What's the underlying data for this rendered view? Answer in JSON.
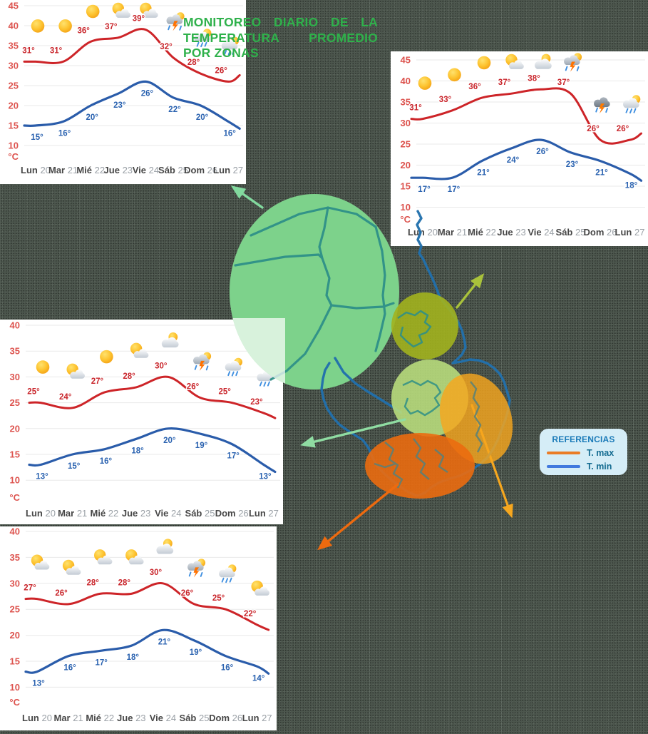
{
  "title": {
    "lines": [
      "MONITOREO DIARIO DE LA",
      "TEMPERATURA PROMEDIO",
      "POR ZONAS"
    ],
    "color": "#2fb14b"
  },
  "legend": {
    "title": "REFERENCIAS",
    "items": [
      {
        "label": "T. max",
        "color": "#ea7c26"
      },
      {
        "label": "T. min",
        "color": "#4179de"
      }
    ]
  },
  "chart_data": [
    {
      "type": "line",
      "zone": "zone-1",
      "categories": [
        "Lun 20",
        "Mar 21",
        "Mié 22",
        "Jue 23",
        "Vie 24",
        "Sáb 25",
        "Dom 26",
        "Lun 27"
      ],
      "ylabel": "°C",
      "ylim": [
        10,
        45
      ],
      "yticks": [
        45,
        40,
        35,
        30,
        25,
        20,
        15,
        10
      ],
      "grid": true,
      "legend_position": "none",
      "series": [
        {
          "name": "T. max",
          "color": "#cd2428",
          "values": [
            31,
            31,
            36,
            37,
            39,
            32,
            28,
            26
          ],
          "labels": [
            "31°",
            "31°",
            "36°",
            "37°",
            "39°",
            "32°",
            "28°",
            "26°"
          ],
          "icons": [
            "sun",
            "sun",
            "sun",
            "sun-cloud",
            "sun-cloud",
            "storm",
            "rain-sun",
            "rain-sun"
          ]
        },
        {
          "name": "T. min",
          "color": "#2a5caa",
          "values": [
            15,
            16,
            20,
            23,
            26,
            22,
            20,
            16
          ],
          "labels": [
            "15°",
            "16°",
            "20°",
            "23°",
            "26°",
            "22°",
            "20°",
            "16°"
          ]
        }
      ]
    },
    {
      "type": "line",
      "zone": "zone-2",
      "categories": [
        "Lun 20",
        "Mar 21",
        "Mié 22",
        "Jue 23",
        "Vie 24",
        "Sáb 25",
        "Dom 26",
        "Lun 27"
      ],
      "ylabel": "°C",
      "ylim": [
        10,
        45
      ],
      "yticks": [
        45,
        40,
        35,
        30,
        25,
        20,
        15,
        10
      ],
      "grid": true,
      "legend_position": "none",
      "series": [
        {
          "name": "T. max",
          "color": "#cd2428",
          "values": [
            31,
            33,
            36,
            37,
            38,
            37,
            26,
            26
          ],
          "labels": [
            "31°",
            "33°",
            "36°",
            "37°",
            "38°",
            "37°",
            "26°",
            "26°"
          ],
          "icons": [
            "sun",
            "sun",
            "sun",
            "sun-cloud",
            "cloud-sun",
            "storm",
            "storm-dark",
            "rain-sun"
          ]
        },
        {
          "name": "T. min",
          "color": "#2a5caa",
          "values": [
            17,
            17,
            21,
            24,
            26,
            23,
            21,
            18
          ],
          "labels": [
            "17°",
            "17°",
            "21°",
            "24°",
            "26°",
            "23°",
            "21°",
            "18°"
          ]
        }
      ]
    },
    {
      "type": "line",
      "zone": "zone-3",
      "categories": [
        "Lun 20",
        "Mar 21",
        "Mié 22",
        "Jue 23",
        "Vie 24",
        "Sáb 25",
        "Dom 26",
        "Lun 27"
      ],
      "ylabel": "°C",
      "ylim": [
        10,
        40
      ],
      "yticks": [
        40,
        35,
        30,
        25,
        20,
        15,
        10
      ],
      "grid": true,
      "legend_position": "none",
      "series": [
        {
          "name": "T. max",
          "color": "#cd2428",
          "values": [
            25,
            24,
            27,
            28,
            30,
            26,
            25,
            23
          ],
          "labels": [
            "25°",
            "24°",
            "27°",
            "28°",
            "30°",
            "26°",
            "25°",
            "23°"
          ],
          "icons": [
            "sun",
            "sun-cloud",
            "sun",
            "sun-cloud",
            "cloud-sun",
            "storm",
            "rain-sun",
            "rain-sun"
          ]
        },
        {
          "name": "T. min",
          "color": "#2a5caa",
          "values": [
            13,
            15,
            16,
            18,
            20,
            19,
            17,
            13
          ],
          "labels": [
            "13°",
            "15°",
            "16°",
            "18°",
            "20°",
            "19°",
            "17°",
            "13°"
          ]
        }
      ]
    },
    {
      "type": "line",
      "zone": "zone-4",
      "categories": [
        "Lun 20",
        "Mar 21",
        "Mié 22",
        "Jue 23",
        "Vie 24",
        "Sáb 25",
        "Dom 26",
        "Lun 27"
      ],
      "ylabel": "°C",
      "ylim": [
        10,
        40
      ],
      "yticks": [
        40,
        35,
        30,
        25,
        20,
        15,
        10
      ],
      "grid": true,
      "legend_position": "none",
      "series": [
        {
          "name": "T. max",
          "color": "#cd2428",
          "values": [
            27,
            26,
            28,
            28,
            30,
            26,
            25,
            22
          ],
          "labels": [
            "27°",
            "26°",
            "28°",
            "28°",
            "30°",
            "26°",
            "25°",
            "22°"
          ],
          "icons": [
            "sun-cloud",
            "sun-cloud",
            "sun-cloud",
            "sun-cloud",
            "cloud-sun",
            "storm",
            "rain-sun",
            "sun-cloud"
          ]
        },
        {
          "name": "T. min",
          "color": "#2a5caa",
          "values": [
            13,
            16,
            17,
            18,
            21,
            19,
            16,
            14
          ],
          "labels": [
            "13°",
            "16°",
            "17°",
            "18°",
            "21°",
            "19°",
            "16°",
            "14°"
          ]
        }
      ]
    }
  ],
  "map": {
    "border_color": "#2170ad",
    "inner_border_color": "#2f9088",
    "zones": [
      {
        "id": "zone-nw",
        "color": "#7dd28b"
      },
      {
        "id": "zone-ne",
        "color": "#a2b31e"
      },
      {
        "id": "zone-center",
        "color": "#bbdf7d"
      },
      {
        "id": "zone-east",
        "color": "#f7a61d"
      },
      {
        "id": "zone-south",
        "color": "#eb6b10"
      }
    ],
    "arrows": [
      {
        "id": "a1",
        "color": "#82d99e",
        "to": "chart-zone-1"
      },
      {
        "id": "a2",
        "color": "#a9c23b",
        "to": "chart-zone-2"
      },
      {
        "id": "a3",
        "color": "#8fdca2",
        "to": "chart-zone-3"
      },
      {
        "id": "a4",
        "color": "#ed6a0f",
        "to": "chart-zone-4"
      },
      {
        "id": "a5",
        "color": "#f6a71f",
        "to": "off-canvas"
      }
    ]
  }
}
